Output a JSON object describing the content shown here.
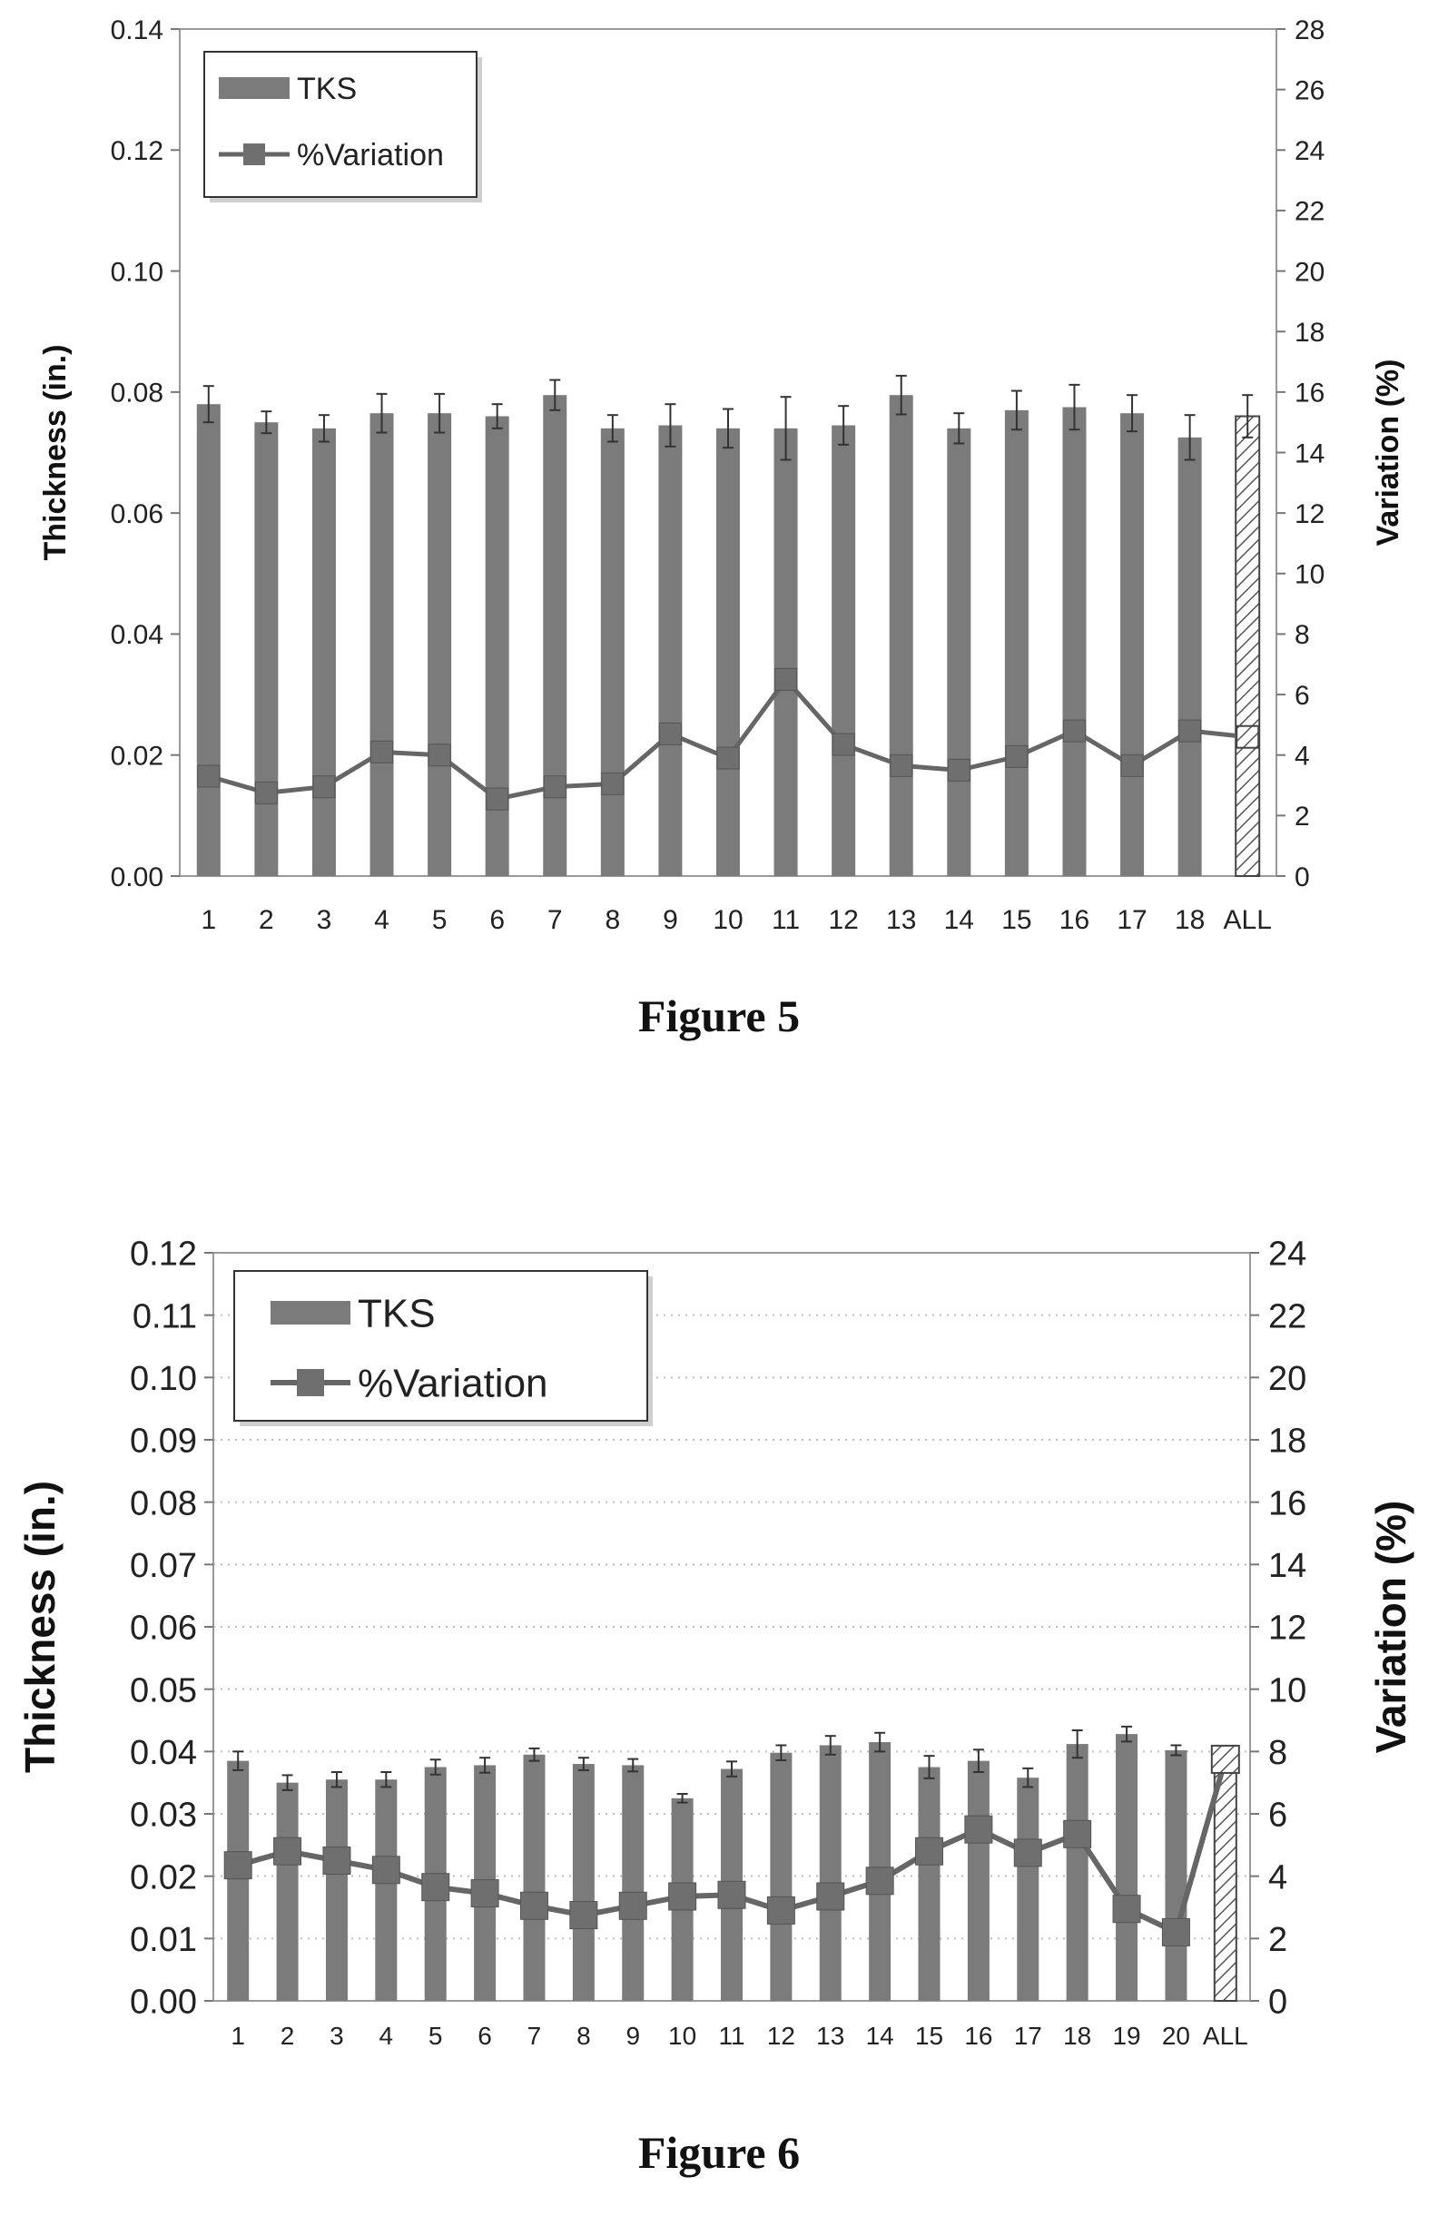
{
  "figures": [
    {
      "caption": "Figure 5",
      "chart_data": {
        "type": "bar",
        "combined_with": "line",
        "categories": [
          "1",
          "2",
          "3",
          "4",
          "5",
          "6",
          "7",
          "8",
          "9",
          "10",
          "11",
          "12",
          "13",
          "14",
          "15",
          "16",
          "17",
          "18",
          "ALL"
        ],
        "series": [
          {
            "name": "TKS",
            "axis": "left",
            "type": "bar",
            "values": [
              0.078,
              0.075,
              0.074,
              0.0765,
              0.0765,
              0.076,
              0.0795,
              0.074,
              0.0745,
              0.074,
              0.074,
              0.0745,
              0.0795,
              0.074,
              0.077,
              0.0775,
              0.0765,
              0.0725,
              0.076
            ],
            "error": [
              0.003,
              0.0018,
              0.0022,
              0.0032,
              0.0032,
              0.002,
              0.0025,
              0.0022,
              0.0035,
              0.0032,
              0.0052,
              0.0032,
              0.0032,
              0.0025,
              0.0032,
              0.0037,
              0.003,
              0.0037,
              0.0035
            ],
            "last_bar_style": "hatched"
          },
          {
            "name": "%Variation",
            "axis": "right",
            "type": "line",
            "values": [
              3.3,
              2.75,
              2.95,
              4.1,
              4.0,
              2.55,
              2.95,
              3.05,
              4.7,
              3.9,
              6.5,
              4.35,
              3.65,
              3.5,
              3.95,
              4.8,
              3.65,
              4.8,
              4.6
            ]
          }
        ],
        "ylabel": "Thickness (in.)",
        "y2label": "Variation (%)",
        "xlabel": "",
        "ylim": [
          0,
          0.14
        ],
        "y2lim": [
          0,
          28
        ],
        "yticks": [
          "0.00",
          "0.02",
          "0.04",
          "0.06",
          "0.08",
          "0.10",
          "0.12",
          "0.14"
        ],
        "y2ticks": [
          "0",
          "2",
          "4",
          "6",
          "8",
          "10",
          "12",
          "14",
          "16",
          "18",
          "20",
          "22",
          "24",
          "26",
          "28"
        ],
        "legend": "top-left",
        "grid": false,
        "colors": {
          "bar": "#7b7b7b",
          "line": "#666666",
          "marker": "#6f6f6f"
        }
      }
    },
    {
      "caption": "Figure 6",
      "chart_data": {
        "type": "bar",
        "combined_with": "line",
        "categories": [
          "1",
          "2",
          "3",
          "4",
          "5",
          "6",
          "7",
          "8",
          "9",
          "10",
          "11",
          "12",
          "13",
          "14",
          "15",
          "16",
          "17",
          "18",
          "19",
          "20",
          "ALL"
        ],
        "series": [
          {
            "name": "TKS",
            "axis": "left",
            "type": "bar",
            "values": [
              0.0385,
              0.035,
              0.0355,
              0.0355,
              0.0375,
              0.0378,
              0.0395,
              0.038,
              0.0378,
              0.0325,
              0.0372,
              0.0398,
              0.041,
              0.0415,
              0.0375,
              0.0385,
              0.0358,
              0.0412,
              0.0428,
              0.0402,
              0.039
            ],
            "error": [
              0.0015,
              0.0012,
              0.0012,
              0.0012,
              0.0012,
              0.0012,
              0.001,
              0.001,
              0.001,
              0.0007,
              0.0012,
              0.0012,
              0.0015,
              0.0015,
              0.0018,
              0.0018,
              0.0015,
              0.0022,
              0.0012,
              0.0008,
              0.0
            ],
            "last_bar_style": "hatched"
          },
          {
            "name": "%Variation",
            "axis": "right",
            "type": "line",
            "values": [
              4.35,
              4.8,
              4.5,
              4.2,
              3.65,
              3.45,
              3.05,
              2.75,
              3.05,
              3.35,
              3.4,
              2.9,
              3.35,
              3.85,
              4.8,
              5.5,
              4.75,
              5.35,
              2.95,
              2.2,
              7.75
            ]
          }
        ],
        "ylabel": "Thickness (in.)",
        "y2label": "Variation (%)",
        "xlabel": "",
        "ylim": [
          0,
          0.12
        ],
        "y2lim": [
          0,
          24
        ],
        "yticks": [
          "0.00",
          "0.01",
          "0.02",
          "0.03",
          "0.04",
          "0.05",
          "0.06",
          "0.07",
          "0.08",
          "0.09",
          "0.10",
          "0.11",
          "0.12"
        ],
        "y2ticks": [
          "0",
          "2",
          "4",
          "6",
          "8",
          "10",
          "12",
          "14",
          "16",
          "18",
          "20",
          "22",
          "24"
        ],
        "legend": "top-left",
        "grid": true,
        "colors": {
          "bar": "#7b7b7b",
          "line": "#666666",
          "marker": "#6f6f6f"
        }
      }
    }
  ]
}
